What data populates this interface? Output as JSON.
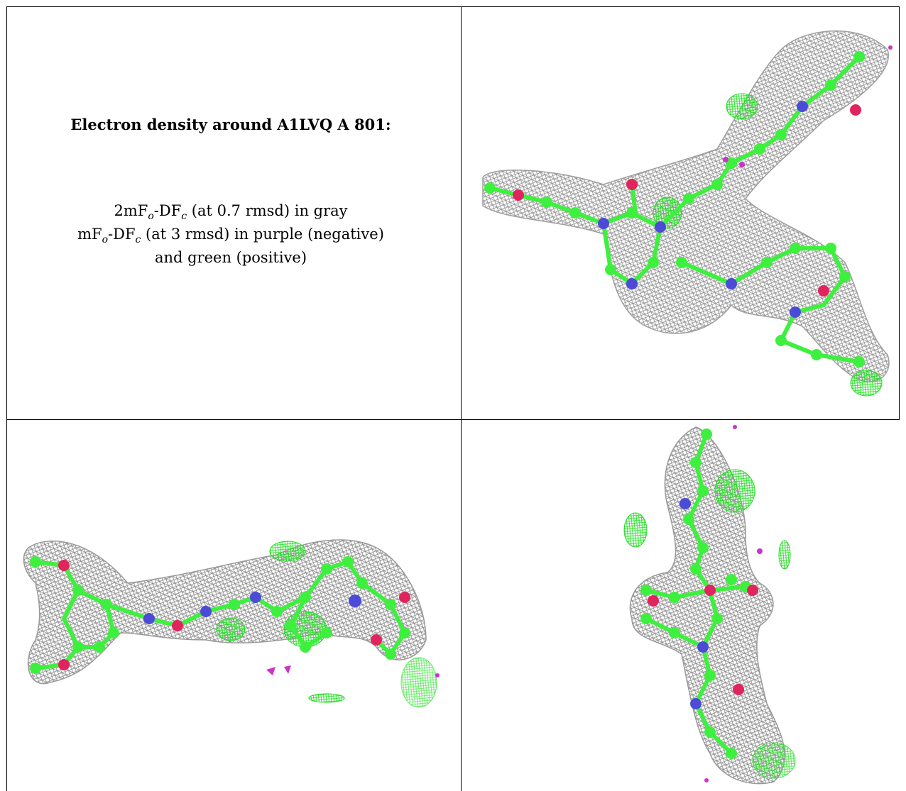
{
  "caption": {
    "title": "Electron density around A1LVQ A 801:",
    "line1_prefix": "2mF",
    "line1_sub1": "o",
    "line1_mid": "-DF",
    "line1_sub2": "c",
    "line1_suffix": " (at 0.7 rmsd) in gray",
    "line2_prefix": "mF",
    "line2_sub1": "o",
    "line2_mid": "-DF",
    "line2_sub2": "c",
    "line2_suffix": " (at 3 rmsd) in purple (negative)",
    "line3": "and green (positive)"
  },
  "colors": {
    "mesh_gray": "#8a8a8a",
    "carbon_green": "#3ef03e",
    "nitrogen_blue": "#4b4bd8",
    "oxygen_red": "#e0245e",
    "negative_purple": "#cc33cc",
    "positive_green": "#22dd22"
  },
  "panels": [
    "top-right-view",
    "bottom-left-view",
    "bottom-right-view"
  ]
}
